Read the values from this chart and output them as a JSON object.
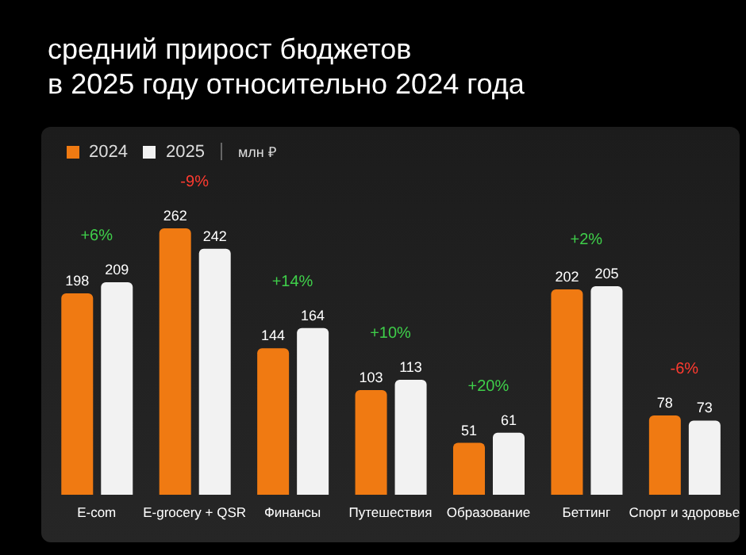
{
  "chart_data": {
    "type": "bar",
    "title": "средний прирост бюджетов\nв 2025 году относительно 2024 года",
    "ylabel": "млн ₽",
    "categories": [
      "E-com",
      "E-grocery + QSR",
      "Финансы",
      "Путешествия",
      "Образование",
      "Беттинг",
      "Спорт и здоровье"
    ],
    "series": [
      {
        "name": "2024",
        "color": "#f07a12",
        "values": [
          198,
          262,
          144,
          103,
          51,
          202,
          78
        ]
      },
      {
        "name": "2025",
        "color": "#f2f2f2",
        "values": [
          209,
          242,
          164,
          113,
          61,
          205,
          73
        ]
      }
    ],
    "data_labels": true,
    "legend": "top left",
    "annotations": [
      "+6%",
      "-9%",
      "+14%",
      "+10%",
      "+20%",
      "+2%",
      "-6%"
    ]
  }
}
